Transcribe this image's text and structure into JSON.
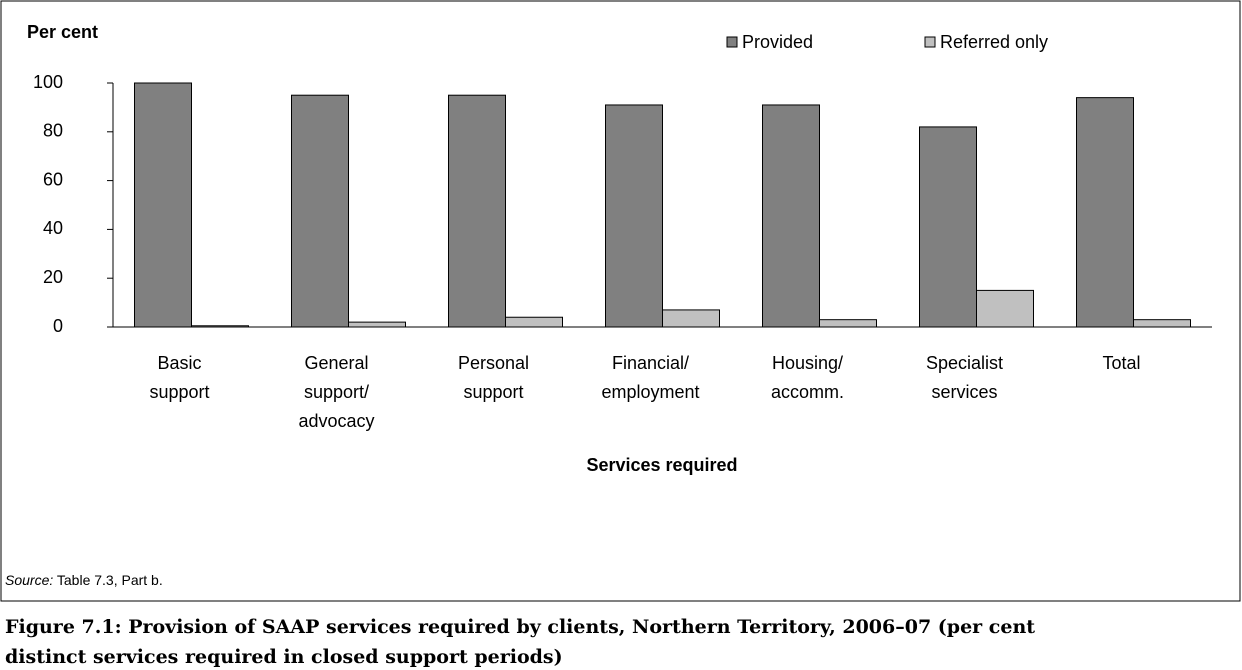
{
  "chart_data": {
    "type": "bar",
    "y_label": "Per cent",
    "x_label": "Services required",
    "categories": [
      [
        "Basic",
        "support"
      ],
      [
        "General",
        "support/",
        "advocacy"
      ],
      [
        "Personal",
        "support"
      ],
      [
        "Financial/",
        "employment"
      ],
      [
        "Housing/",
        "accomm."
      ],
      [
        "Specialist",
        "services"
      ],
      [
        "Total"
      ]
    ],
    "series": [
      {
        "name": "Provided",
        "color": "#808080",
        "values": [
          100,
          95,
          95,
          91,
          91,
          82,
          94
        ]
      },
      {
        "name": "Referred only",
        "color": "#c0c0c0",
        "values": [
          0.5,
          2,
          4,
          7,
          3,
          15,
          3
        ]
      }
    ],
    "ylim": [
      0,
      100
    ],
    "yticks": [
      0,
      20,
      40,
      60,
      80,
      100
    ],
    "legend": "top",
    "source_label": "Source:",
    "source": "Table 7.3, Part b.",
    "caption": [
      "Figure 7.1: Provision of SAAP services required by clients, Northern Territory, 2006–07 (per cent",
      "distinct services required in closed support periods)"
    ]
  }
}
